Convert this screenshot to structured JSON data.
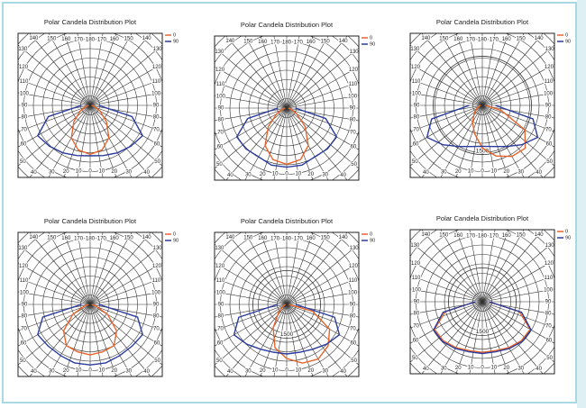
{
  "chart_data": [
    {
      "type": "polar",
      "title": "Polar Candela Distribution Plot",
      "x": [
        -90,
        -75,
        -60,
        -45,
        -30,
        -15,
        0,
        15,
        30,
        45,
        60,
        75,
        90
      ],
      "rlim": [
        0,
        2500
      ],
      "theta_ticks": [
        0,
        10,
        20,
        30,
        40,
        50,
        60,
        70,
        80,
        90,
        100,
        110,
        120,
        130,
        140,
        150,
        160,
        170,
        180
      ],
      "series": [
        {
          "name": "0",
          "color": "#e8642a",
          "values": [
            50,
            150,
            400,
            800,
            1300,
            1600,
            1700,
            1600,
            1300,
            800,
            400,
            150,
            50
          ]
        },
        {
          "name": "90",
          "color": "#2b3c9c",
          "values": [
            300,
            1500,
            2100,
            2000,
            1900,
            1800,
            1750,
            1800,
            1900,
            2000,
            2100,
            1500,
            300
          ]
        }
      ]
    },
    {
      "type": "polar",
      "title": "Polar Candela Distribution Plot",
      "x": [
        -90,
        -75,
        -60,
        -45,
        -30,
        -15,
        0,
        15,
        30,
        45,
        60,
        75,
        90
      ],
      "rlim": [
        0,
        2500
      ],
      "theta_ticks": [
        0,
        10,
        20,
        30,
        40,
        50,
        60,
        70,
        80,
        90,
        100,
        110,
        120,
        130,
        140,
        150,
        160,
        170,
        180
      ],
      "series": [
        {
          "name": "0",
          "color": "#e8642a",
          "values": [
            50,
            150,
            400,
            900,
            1500,
            1850,
            1950,
            1850,
            1500,
            900,
            400,
            150,
            50
          ]
        },
        {
          "name": "90",
          "color": "#2b3c9c",
          "values": [
            300,
            1400,
            2000,
            2000,
            1950,
            2050,
            2050,
            2050,
            1950,
            2000,
            2000,
            1400,
            300
          ]
        }
      ]
    },
    {
      "type": "polar",
      "title": "Polar Candela Distribution Plot",
      "x": [
        -90,
        -75,
        -60,
        -45,
        -30,
        -15,
        0,
        15,
        30,
        45,
        60,
        75,
        90
      ],
      "rlim": [
        0,
        2200
      ],
      "rticks": [
        1500
      ],
      "theta_ticks": [
        0,
        10,
        20,
        30,
        40,
        50,
        60,
        70,
        80,
        90,
        100,
        110,
        120,
        130,
        140,
        150,
        160,
        170,
        180
      ],
      "series": [
        {
          "name": "0",
          "color": "#e8642a",
          "values": [
            50,
            100,
            200,
            350,
            600,
            900,
            1300,
            1600,
            1800,
            1850,
            1500,
            600,
            100
          ]
        },
        {
          "name": "90",
          "color": "#2b3c9c",
          "values": [
            400,
            1600,
            1950,
            1700,
            1450,
            1300,
            1250,
            1300,
            1450,
            1700,
            1950,
            1600,
            400
          ]
        }
      ]
    },
    {
      "type": "polar",
      "title": "Polar Candela Distribution Plot",
      "x": [
        -90,
        -75,
        -60,
        -45,
        -30,
        -15,
        0,
        15,
        30,
        45,
        60,
        75,
        90
      ],
      "rlim": [
        0,
        2500
      ],
      "theta_ticks": [
        0,
        10,
        20,
        30,
        40,
        50,
        60,
        70,
        80,
        90,
        100,
        110,
        120,
        130,
        140,
        150,
        160,
        170,
        180
      ],
      "series": [
        {
          "name": "0",
          "color": "#e8642a",
          "values": [
            50,
            200,
            700,
            1300,
            1650,
            1700,
            1750,
            1700,
            1650,
            1300,
            700,
            200,
            50
          ]
        },
        {
          "name": "90",
          "color": "#2b3c9c",
          "values": [
            300,
            1700,
            2100,
            2050,
            2050,
            2100,
            2100,
            2100,
            2050,
            2050,
            2100,
            1700,
            300
          ]
        }
      ]
    },
    {
      "type": "polar",
      "title": "Polar Candela Distribution Plot",
      "x": [
        -90,
        -75,
        -60,
        -45,
        -30,
        -15,
        0,
        15,
        30,
        45,
        60,
        75,
        90
      ],
      "rlim": [
        0,
        3200
      ],
      "rticks": [
        1500
      ],
      "theta_ticks": [
        0,
        10,
        20,
        30,
        40,
        50,
        60,
        70,
        80,
        90,
        100,
        110,
        120,
        130,
        140,
        150,
        160,
        170,
        180
      ],
      "series": [
        {
          "name": "0",
          "color": "#e8642a",
          "values": [
            50,
            100,
            200,
            500,
            1200,
            2000,
            2400,
            2700,
            2800,
            2600,
            2200,
            1200,
            100
          ]
        },
        {
          "name": "90",
          "color": "#2b3c9c",
          "values": [
            400,
            2200,
            2700,
            2500,
            2300,
            2200,
            2200,
            2200,
            2300,
            2500,
            2700,
            2200,
            400
          ]
        }
      ]
    },
    {
      "type": "polar",
      "title": "Polar Candela Distribution Plot",
      "x": [
        -90,
        -75,
        -60,
        -45,
        -30,
        -15,
        0,
        15,
        30,
        45,
        60,
        75,
        90
      ],
      "rlim": [
        0,
        3200
      ],
      "rticks": [
        1500
      ],
      "theta_ticks": [
        0,
        10,
        20,
        30,
        40,
        50,
        60,
        70,
        80,
        90,
        100,
        110,
        120,
        130,
        140,
        150,
        160,
        170,
        180
      ],
      "series": [
        {
          "name": "0",
          "color": "#e8642a",
          "values": [
            300,
            1700,
            2450,
            2450,
            2350,
            2250,
            2250,
            2250,
            2350,
            2450,
            2450,
            1700,
            300
          ]
        },
        {
          "name": "90",
          "color": "#2b3c9c",
          "values": [
            300,
            1800,
            2500,
            2500,
            2400,
            2300,
            2300,
            2300,
            2400,
            2500,
            2500,
            1800,
            300
          ]
        }
      ]
    }
  ]
}
